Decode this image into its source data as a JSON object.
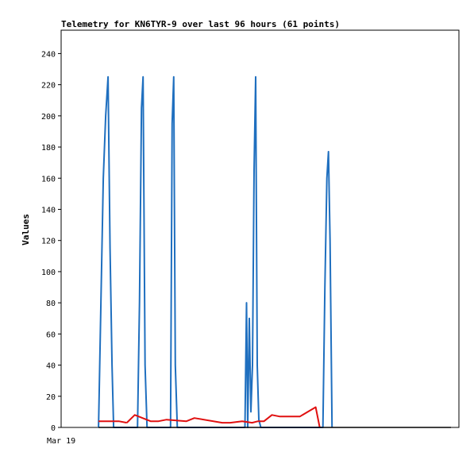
{
  "chart_data": {
    "type": "line",
    "title": "Telemetry for KN6TYR-9 over last 96 hours (61 points)",
    "xlabel": "",
    "ylabel": "Values",
    "x_tick_labels": [
      "Mar 19"
    ],
    "y_ticks": [
      0,
      20,
      40,
      60,
      80,
      100,
      120,
      140,
      160,
      180,
      200,
      220,
      240
    ],
    "xlim": [
      0,
      100
    ],
    "ylim": [
      0,
      255
    ],
    "grid": false,
    "legend": "none",
    "colors": {
      "series_blue": "#1f6fbf",
      "series_red": "#e01010",
      "series_black": "#000000"
    },
    "series": [
      {
        "color": "#1f6fbf",
        "x": [
          9.4,
          10.0,
          10.6,
          11.2,
          11.8,
          12.3,
          12.8,
          13.2,
          19.2,
          19.7,
          20.2,
          20.6,
          21.1,
          21.6,
          27.5,
          27.9,
          28.3,
          28.7,
          29.2,
          46.2,
          46.6,
          46.9,
          47.3,
          47.7,
          48.1,
          48.5,
          48.9,
          49.3,
          49.7,
          50.2,
          65.8,
          66.3,
          66.8,
          67.2,
          67.6,
          68.1
        ],
        "y": [
          0,
          80,
          160,
          200,
          225,
          115,
          40,
          0,
          0,
          80,
          205,
          225,
          40,
          0,
          0,
          195,
          225,
          40,
          0,
          0,
          80,
          0,
          70,
          10,
          40,
          165,
          225,
          40,
          5,
          0,
          0,
          90,
          160,
          177,
          120,
          0
        ]
      },
      {
        "color": "#e01010",
        "x": [
          9.4,
          14.5,
          16.5,
          18.5,
          22.5,
          24.5,
          26.5,
          31.5,
          33.5,
          40.5,
          42.5,
          45.5,
          48.0,
          49.5,
          51.0,
          53.0,
          55.0,
          60.0,
          62.0,
          64.0,
          65.0
        ],
        "y": [
          4,
          4,
          3,
          8,
          4,
          4,
          5,
          4,
          6,
          3,
          3,
          4,
          3,
          4,
          4,
          8,
          7,
          7,
          10,
          13,
          0
        ],
        "segments": [
          {
            "from": 0,
            "to": 2
          },
          {
            "from": 2,
            "to": 20
          }
        ]
      },
      {
        "color": "#000000",
        "x": [
          9.4,
          98.0
        ],
        "y": [
          0,
          0
        ]
      }
    ]
  }
}
